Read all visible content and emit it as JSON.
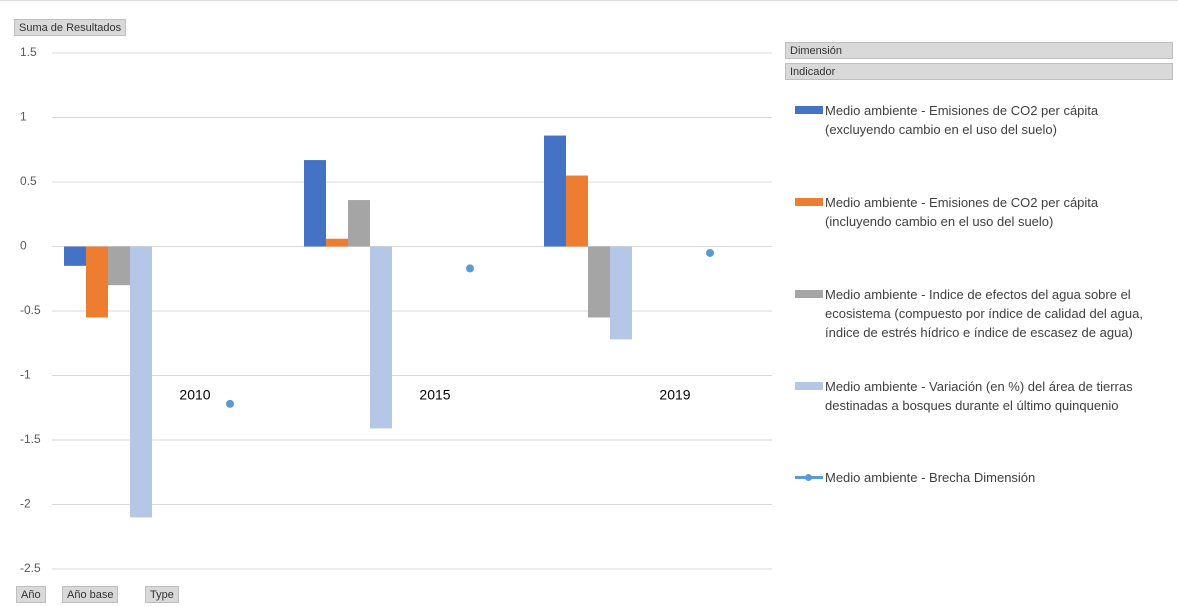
{
  "pivot_fields": {
    "values": "Suma de Resultados",
    "legend": [
      "Dimensión",
      "Indicador"
    ],
    "axis": [
      "Año",
      "Año base",
      "Type"
    ]
  },
  "chart_data": {
    "type": "bar",
    "categories": [
      "2010",
      "2015",
      "2019"
    ],
    "series": [
      {
        "name": "Medio ambiente - Emisiones de CO2 per cápita (excluyendo cambio en el uso del suelo)",
        "color": "#4472c4",
        "type": "bar",
        "values": [
          -0.15,
          0.67,
          0.86
        ]
      },
      {
        "name": "Medio ambiente - Emisiones de CO2 per cápita (incluyendo cambio en el uso del suelo)",
        "color": "#ed7d31",
        "type": "bar",
        "values": [
          -0.55,
          0.06,
          0.55
        ]
      },
      {
        "name": "Medio ambiente - Indice de efectos del agua sobre el ecosistema (compuesto por índice de calidad del agua, índice de estrés hídrico e índice de escasez de agua)",
        "color": "#a5a5a5",
        "type": "bar",
        "values": [
          -0.3,
          0.36,
          -0.55
        ]
      },
      {
        "name": "Medio ambiente - Variación (en %) del área de tierras destinadas a bosques durante el último quinquenio",
        "color": "#b4c7e7",
        "type": "bar",
        "values": [
          -2.1,
          -1.41,
          -0.72
        ]
      },
      {
        "name": "Medio ambiente - Brecha Dimensión",
        "color": "#5b9bd5",
        "type": "line",
        "values": [
          -1.22,
          -0.17,
          -0.05
        ]
      }
    ],
    "ylim": [
      -2.5,
      1.5
    ],
    "yticks": [
      1.5,
      1,
      0.5,
      0,
      -0.5,
      -1,
      -1.5,
      -2,
      -2.5
    ],
    "grid": true,
    "legend": "right"
  }
}
